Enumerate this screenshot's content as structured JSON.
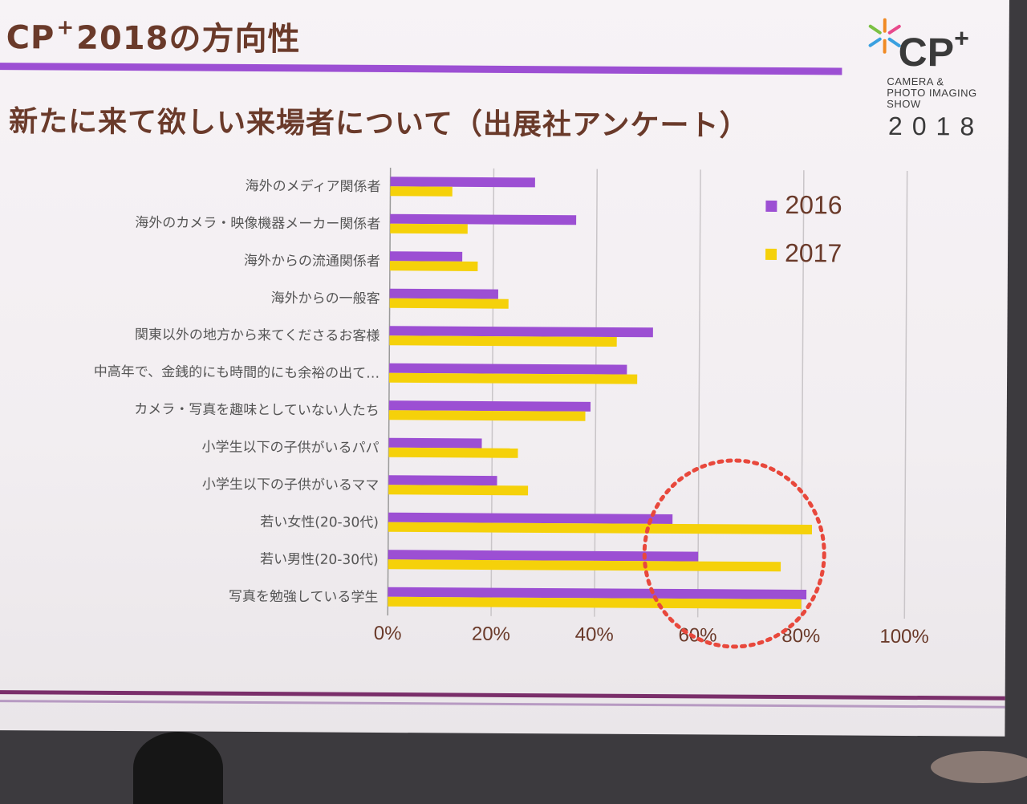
{
  "slide": {
    "title": "CP",
    "title_plus": "+",
    "title_rest": "2018の方向性",
    "subtitle": "新たに来て欲しい来場者について（出展社アンケート）"
  },
  "logo": {
    "mark": "CP",
    "mark_plus": "+",
    "line1": "CAMERA &",
    "line2": "PHOTO IMAGING",
    "line3": "SHOW",
    "year": "2018"
  },
  "chart_data": {
    "type": "bar",
    "orientation": "horizontal",
    "categories": [
      "海外のメディア関係者",
      "海外のカメラ・映像機器メーカー関係者",
      "海外からの流通関係者",
      "海外からの一般客",
      "関東以外の地方から来てくださるお客様",
      "中高年で、金銭的にも時間的にも余裕の出て…",
      "カメラ・写真を趣味としていない人たち",
      "小学生以下の子供がいるパパ",
      "小学生以下の子供がいるママ",
      "若い女性(20-30代)",
      "若い男性(20-30代)",
      "写真を勉強している学生"
    ],
    "series": [
      {
        "name": "2016",
        "color": "#9c4fd3",
        "values": [
          28,
          36,
          14,
          21,
          51,
          46,
          39,
          18,
          21,
          55,
          60,
          81
        ]
      },
      {
        "name": "2017",
        "color": "#f5d10a",
        "values": [
          12,
          15,
          17,
          23,
          44,
          48,
          38,
          25,
          27,
          82,
          76,
          80
        ]
      }
    ],
    "x_ticks": [
      "0%",
      "20%",
      "40%",
      "60%",
      "80%",
      "100%"
    ],
    "xlim": [
      0,
      100
    ],
    "unit": "%",
    "grid": "vertical",
    "legend_position": "top-right",
    "annotation": {
      "type": "dotted-circle",
      "color": "#e8483c",
      "highlights": [
        "若い女性(20-30代)",
        "若い男性(20-30代)",
        "写真を勉強している学生"
      ]
    }
  }
}
